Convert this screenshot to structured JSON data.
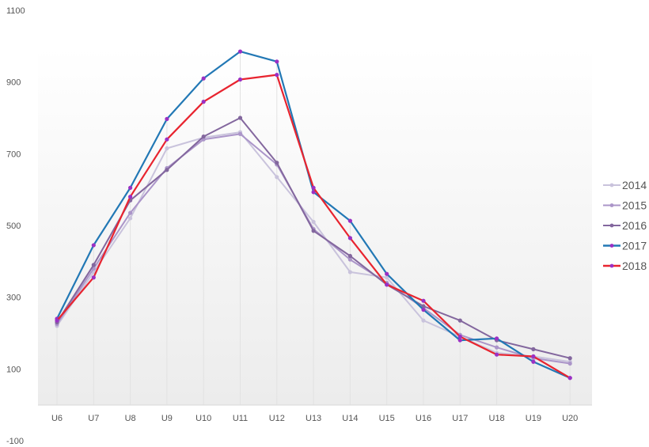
{
  "chart_data": {
    "type": "line",
    "title": "",
    "xlabel": "",
    "ylabel": "",
    "ylim": [
      -100,
      1100
    ],
    "yticks": [
      -100,
      100,
      300,
      500,
      700,
      900,
      1100
    ],
    "categories": [
      "U6",
      "U7",
      "U8",
      "U9",
      "U10",
      "U11",
      "U12",
      "U13",
      "U14",
      "U15",
      "U16",
      "U17",
      "U18",
      "U19",
      "U20"
    ],
    "grid": false,
    "legend_position": "right",
    "series": [
      {
        "name": "2014",
        "color": "#c9c3dc",
        "values": [
          220,
          370,
          520,
          715,
          745,
          760,
          635,
          510,
          370,
          355,
          235,
          190,
          145,
          135,
          120
        ]
      },
      {
        "name": "2015",
        "color": "#ab95c9",
        "values": [
          225,
          380,
          535,
          660,
          740,
          755,
          670,
          490,
          405,
          340,
          270,
          195,
          160,
          130,
          115
        ]
      },
      {
        "name": "2016",
        "color": "#83679e",
        "values": [
          230,
          390,
          570,
          655,
          748,
          800,
          675,
          485,
          415,
          335,
          275,
          235,
          180,
          155,
          130
        ]
      },
      {
        "name": "2017",
        "color": "#2278b5",
        "values": [
          240,
          445,
          605,
          797,
          910,
          985,
          957,
          593,
          513,
          365,
          265,
          180,
          185,
          120,
          75
        ]
      },
      {
        "name": "2018",
        "color": "#e8242f",
        "values": [
          235,
          355,
          580,
          740,
          845,
          907,
          920,
          605,
          465,
          335,
          290,
          190,
          140,
          135,
          75
        ]
      }
    ]
  }
}
